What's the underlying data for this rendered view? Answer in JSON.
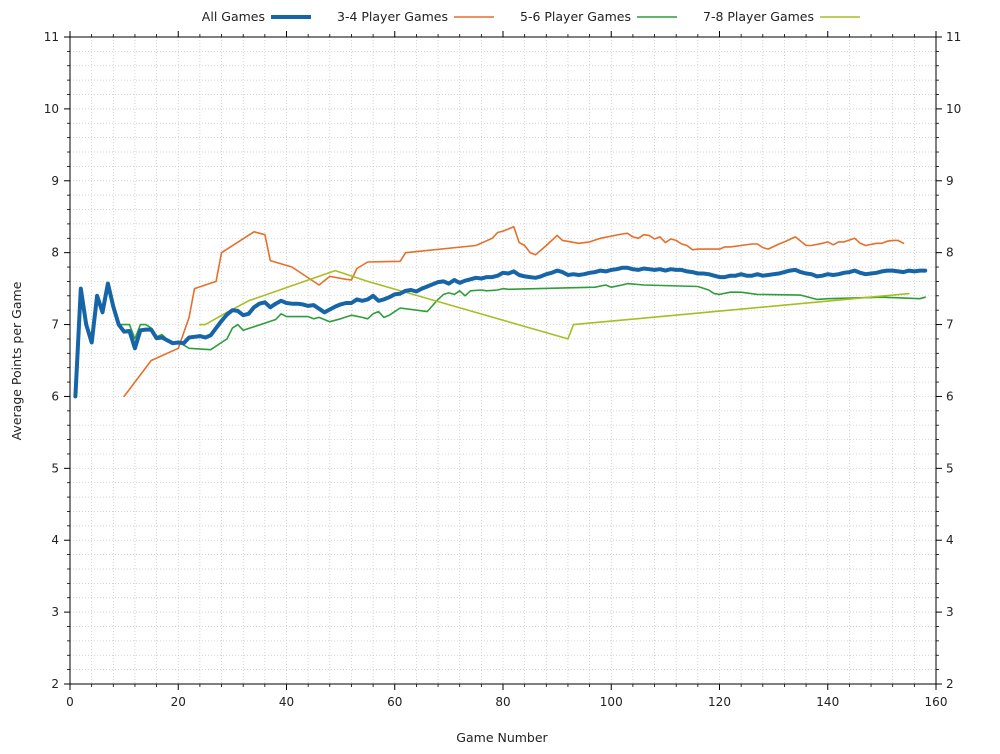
{
  "chart_data": {
    "type": "line",
    "title": "",
    "xlabel": "Game Number",
    "ylabel": "Average Points per Game",
    "xlim": [
      0,
      160
    ],
    "ylim": [
      2,
      11
    ],
    "xticks": [
      0,
      20,
      40,
      60,
      80,
      100,
      120,
      140,
      160
    ],
    "yticks": [
      2,
      3,
      4,
      5,
      6,
      7,
      8,
      9,
      10,
      11
    ],
    "ytick_labels_right": true,
    "grid": "dotted-minor",
    "legend_position": "top-center",
    "series": [
      {
        "name": "All Games",
        "color": "#1565a8",
        "width": 4,
        "points": [
          [
            1,
            6
          ],
          [
            2,
            7.5
          ],
          [
            3,
            7
          ],
          [
            4,
            6.75
          ],
          [
            5,
            7.4
          ],
          [
            6,
            7.17
          ],
          [
            7,
            7.57
          ],
          [
            8,
            7.25
          ],
          [
            9,
            7
          ],
          [
            10,
            6.9
          ],
          [
            11,
            6.91
          ],
          [
            12,
            6.67
          ],
          [
            13,
            6.92
          ],
          [
            14,
            6.93
          ],
          [
            15,
            6.93
          ],
          [
            16,
            6.81
          ],
          [
            17,
            6.82
          ],
          [
            18,
            6.78
          ],
          [
            19,
            6.74
          ],
          [
            20,
            6.75
          ],
          [
            21,
            6.74
          ],
          [
            22,
            6.82
          ],
          [
            23,
            6.83
          ],
          [
            24,
            6.84
          ],
          [
            25,
            6.82
          ],
          [
            26,
            6.85
          ],
          [
            27,
            6.95
          ],
          [
            28,
            7.05
          ],
          [
            29,
            7.14
          ],
          [
            30,
            7.2
          ],
          [
            31,
            7.19
          ],
          [
            32,
            7.13
          ],
          [
            33,
            7.15
          ],
          [
            34,
            7.24
          ],
          [
            35,
            7.29
          ],
          [
            36,
            7.31
          ],
          [
            37,
            7.24
          ],
          [
            38,
            7.29
          ],
          [
            39,
            7.33
          ],
          [
            40,
            7.3
          ],
          [
            41,
            7.29
          ],
          [
            42,
            7.29
          ],
          [
            43,
            7.28
          ],
          [
            44,
            7.26
          ],
          [
            45,
            7.27
          ],
          [
            46,
            7.22
          ],
          [
            47,
            7.17
          ],
          [
            48,
            7.21
          ],
          [
            49,
            7.25
          ],
          [
            50,
            7.28
          ],
          [
            51,
            7.3
          ],
          [
            52,
            7.3
          ],
          [
            53,
            7.35
          ],
          [
            54,
            7.33
          ],
          [
            55,
            7.35
          ],
          [
            56,
            7.4
          ],
          [
            57,
            7.33
          ],
          [
            58,
            7.35
          ],
          [
            59,
            7.38
          ],
          [
            60,
            7.42
          ],
          [
            61,
            7.43
          ],
          [
            62,
            7.47
          ],
          [
            63,
            7.48
          ],
          [
            64,
            7.46
          ],
          [
            65,
            7.5
          ],
          [
            66,
            7.53
          ],
          [
            67,
            7.56
          ],
          [
            68,
            7.59
          ],
          [
            69,
            7.6
          ],
          [
            70,
            7.57
          ],
          [
            71,
            7.62
          ],
          [
            72,
            7.58
          ],
          [
            73,
            7.61
          ],
          [
            74,
            7.63
          ],
          [
            75,
            7.65
          ],
          [
            76,
            7.64
          ],
          [
            77,
            7.66
          ],
          [
            78,
            7.66
          ],
          [
            79,
            7.68
          ],
          [
            80,
            7.72
          ],
          [
            81,
            7.71
          ],
          [
            82,
            7.74
          ],
          [
            83,
            7.69
          ],
          [
            84,
            7.67
          ],
          [
            85,
            7.66
          ],
          [
            86,
            7.65
          ],
          [
            87,
            7.67
          ],
          [
            88,
            7.7
          ],
          [
            89,
            7.72
          ],
          [
            90,
            7.75
          ],
          [
            91,
            7.73
          ],
          [
            92,
            7.69
          ],
          [
            93,
            7.7
          ],
          [
            94,
            7.69
          ],
          [
            95,
            7.7
          ],
          [
            96,
            7.72
          ],
          [
            97,
            7.73
          ],
          [
            98,
            7.75
          ],
          [
            99,
            7.74
          ],
          [
            100,
            7.76
          ],
          [
            101,
            7.77
          ],
          [
            102,
            7.79
          ],
          [
            103,
            7.79
          ],
          [
            104,
            7.77
          ],
          [
            105,
            7.76
          ],
          [
            106,
            7.78
          ],
          [
            107,
            7.77
          ],
          [
            108,
            7.76
          ],
          [
            109,
            7.77
          ],
          [
            110,
            7.75
          ],
          [
            111,
            7.77
          ],
          [
            112,
            7.76
          ],
          [
            113,
            7.76
          ],
          [
            114,
            7.74
          ],
          [
            115,
            7.73
          ],
          [
            116,
            7.71
          ],
          [
            117,
            7.71
          ],
          [
            118,
            7.7
          ],
          [
            119,
            7.68
          ],
          [
            120,
            7.66
          ],
          [
            121,
            7.66
          ],
          [
            122,
            7.68
          ],
          [
            123,
            7.68
          ],
          [
            124,
            7.7
          ],
          [
            125,
            7.68
          ],
          [
            126,
            7.68
          ],
          [
            127,
            7.7
          ],
          [
            128,
            7.68
          ],
          [
            129,
            7.69
          ],
          [
            130,
            7.7
          ],
          [
            131,
            7.71
          ],
          [
            132,
            7.73
          ],
          [
            133,
            7.75
          ],
          [
            134,
            7.76
          ],
          [
            135,
            7.73
          ],
          [
            136,
            7.71
          ],
          [
            137,
            7.7
          ],
          [
            138,
            7.67
          ],
          [
            139,
            7.68
          ],
          [
            140,
            7.7
          ],
          [
            141,
            7.69
          ],
          [
            142,
            7.7
          ],
          [
            143,
            7.72
          ],
          [
            144,
            7.73
          ],
          [
            145,
            7.75
          ],
          [
            146,
            7.72
          ],
          [
            147,
            7.7
          ],
          [
            148,
            7.71
          ],
          [
            149,
            7.72
          ],
          [
            150,
            7.74
          ],
          [
            151,
            7.75
          ],
          [
            152,
            7.75
          ],
          [
            153,
            7.74
          ],
          [
            154,
            7.73
          ],
          [
            155,
            7.75
          ],
          [
            156,
            7.74
          ],
          [
            157,
            7.75
          ],
          [
            158,
            7.75
          ]
        ]
      },
      {
        "name": "3-4 Player Games",
        "color": "#e66f2a",
        "width": 1.6,
        "points": [
          [
            10,
            6
          ],
          [
            15,
            6.5
          ],
          [
            20,
            6.67
          ],
          [
            22,
            7.1
          ],
          [
            23,
            7.5
          ],
          [
            27,
            7.6
          ],
          [
            28,
            8
          ],
          [
            34,
            8.29
          ],
          [
            36,
            8.25
          ],
          [
            37,
            7.89
          ],
          [
            41,
            7.8
          ],
          [
            46,
            7.55
          ],
          [
            48,
            7.67
          ],
          [
            51,
            7.63
          ],
          [
            52,
            7.62
          ],
          [
            53,
            7.78
          ],
          [
            55,
            7.87
          ],
          [
            61,
            7.88
          ],
          [
            62,
            8
          ],
          [
            75,
            8.1
          ],
          [
            78,
            8.2
          ],
          [
            79,
            8.28
          ],
          [
            80,
            8.3
          ],
          [
            82,
            8.36
          ],
          [
            83,
            8.14
          ],
          [
            84,
            8.1
          ],
          [
            85,
            8
          ],
          [
            86,
            7.97
          ],
          [
            88,
            8.1
          ],
          [
            90,
            8.24
          ],
          [
            91,
            8.17
          ],
          [
            94,
            8.13
          ],
          [
            96,
            8.15
          ],
          [
            98,
            8.2
          ],
          [
            100,
            8.23
          ],
          [
            102,
            8.26
          ],
          [
            103,
            8.27
          ],
          [
            104,
            8.22
          ],
          [
            105,
            8.2
          ],
          [
            106,
            8.25
          ],
          [
            107,
            8.24
          ],
          [
            108,
            8.19
          ],
          [
            109,
            8.22
          ],
          [
            110,
            8.14
          ],
          [
            111,
            8.19
          ],
          [
            112,
            8.17
          ],
          [
            113,
            8.12
          ],
          [
            114,
            8.1
          ],
          [
            115,
            8.04
          ],
          [
            116,
            8.05
          ],
          [
            120,
            8.05
          ],
          [
            121,
            8.08
          ],
          [
            122,
            8.08
          ],
          [
            124,
            8.1
          ],
          [
            126,
            8.12
          ],
          [
            127,
            8.12
          ],
          [
            128,
            8.07
          ],
          [
            129,
            8.05
          ],
          [
            131,
            8.12
          ],
          [
            132,
            8.15
          ],
          [
            134,
            8.22
          ],
          [
            136,
            8.1
          ],
          [
            137,
            8.1
          ],
          [
            139,
            8.13
          ],
          [
            140,
            8.15
          ],
          [
            141,
            8.11
          ],
          [
            142,
            8.15
          ],
          [
            143,
            8.15
          ],
          [
            145,
            8.2
          ],
          [
            146,
            8.13
          ],
          [
            147,
            8.1
          ],
          [
            149,
            8.13
          ],
          [
            150,
            8.13
          ],
          [
            151,
            8.16
          ],
          [
            152,
            8.17
          ],
          [
            153,
            8.17
          ],
          [
            154,
            8.13
          ]
        ]
      },
      {
        "name": "5-6 Player Games",
        "color": "#2e9e3c",
        "width": 1.6,
        "points": [
          [
            1,
            6
          ],
          [
            2,
            7.5
          ],
          [
            3,
            7
          ],
          [
            4,
            6.75
          ],
          [
            5,
            7.4
          ],
          [
            6,
            7.17
          ],
          [
            7,
            7.57
          ],
          [
            8,
            7.25
          ],
          [
            9,
            7
          ],
          [
            10,
            7
          ],
          [
            11,
            7
          ],
          [
            12,
            6.8
          ],
          [
            13,
            7
          ],
          [
            14,
            7
          ],
          [
            15,
            6.95
          ],
          [
            16,
            6.83
          ],
          [
            17,
            6.86
          ],
          [
            18,
            6.79
          ],
          [
            19,
            6.75
          ],
          [
            20,
            6.76
          ],
          [
            22,
            6.67
          ],
          [
            26,
            6.65
          ],
          [
            28,
            6.75
          ],
          [
            29,
            6.8
          ],
          [
            30,
            6.95
          ],
          [
            31,
            7
          ],
          [
            32,
            6.92
          ],
          [
            34,
            6.97
          ],
          [
            36,
            7.02
          ],
          [
            38,
            7.07
          ],
          [
            39,
            7.15
          ],
          [
            40,
            7.11
          ],
          [
            44,
            7.11
          ],
          [
            45,
            7.08
          ],
          [
            46,
            7.1
          ],
          [
            48,
            7.04
          ],
          [
            50,
            7.08
          ],
          [
            52,
            7.13
          ],
          [
            54,
            7.1
          ],
          [
            55,
            7.08
          ],
          [
            56,
            7.15
          ],
          [
            57,
            7.18
          ],
          [
            58,
            7.1
          ],
          [
            59,
            7.13
          ],
          [
            60,
            7.18
          ],
          [
            61,
            7.23
          ],
          [
            66,
            7.18
          ],
          [
            68,
            7.35
          ],
          [
            69,
            7.42
          ],
          [
            70,
            7.44
          ],
          [
            71,
            7.42
          ],
          [
            72,
            7.47
          ],
          [
            73,
            7.4
          ],
          [
            74,
            7.47
          ],
          [
            76,
            7.48
          ],
          [
            77,
            7.47
          ],
          [
            79,
            7.48
          ],
          [
            80,
            7.5
          ],
          [
            81,
            7.49
          ],
          [
            97,
            7.52
          ],
          [
            99,
            7.55
          ],
          [
            100,
            7.52
          ],
          [
            102,
            7.55
          ],
          [
            103,
            7.57
          ],
          [
            106,
            7.55
          ],
          [
            116,
            7.53
          ],
          [
            118,
            7.48
          ],
          [
            119,
            7.43
          ],
          [
            120,
            7.42
          ],
          [
            122,
            7.45
          ],
          [
            124,
            7.45
          ],
          [
            127,
            7.42
          ],
          [
            135,
            7.41
          ],
          [
            138,
            7.35
          ],
          [
            140,
            7.36
          ],
          [
            150,
            7.38
          ],
          [
            157,
            7.36
          ],
          [
            158,
            7.38
          ]
        ]
      },
      {
        "name": "7-8 Player Games",
        "color": "#a9bd22",
        "width": 1.6,
        "points": [
          [
            24,
            7
          ],
          [
            25,
            7
          ],
          [
            29,
            7.17
          ],
          [
            33,
            7.33
          ],
          [
            49,
            7.75
          ],
          [
            55,
            7.6
          ],
          [
            92,
            6.8
          ],
          [
            93,
            7
          ],
          [
            155,
            7.43
          ]
        ]
      }
    ]
  }
}
